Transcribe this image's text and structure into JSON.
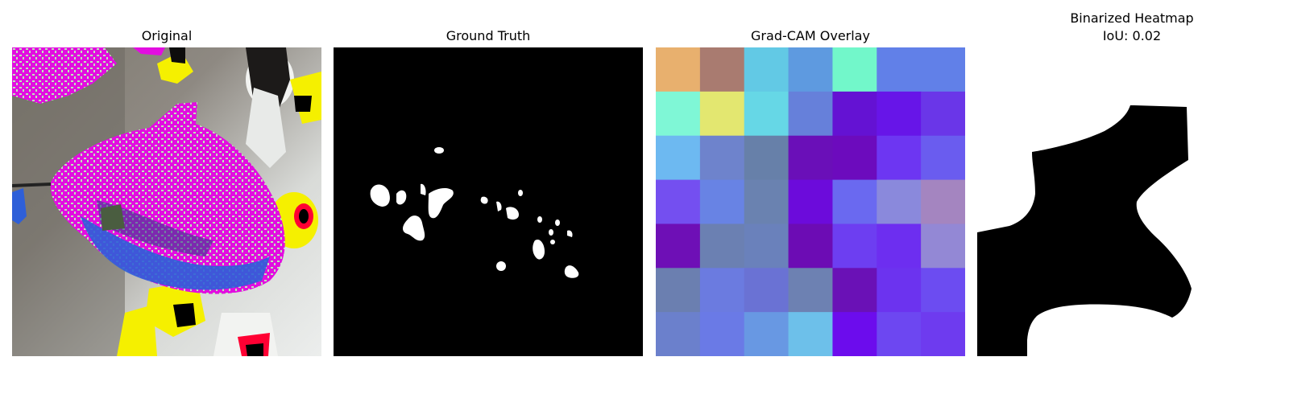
{
  "panels": [
    {
      "title": "Original"
    },
    {
      "title": "Ground Truth"
    },
    {
      "title": "Grad-CAM Overlay"
    },
    {
      "title": "Binarized Heatmap",
      "subtitle": "IoU: 0.02"
    }
  ],
  "gradcam_grid": {
    "rows": 7,
    "cols": 7,
    "colors": [
      [
        "#e8b06e",
        "#a97b70",
        "#62c9e5",
        "#5e9ae0",
        "#72f7ca",
        "#6180e8",
        "#6180e8"
      ],
      [
        "#7ff7d6",
        "#e3e770",
        "#66d7e6",
        "#6680da",
        "#6412d3",
        "#6715e8",
        "#6a36e8"
      ],
      [
        "#6db9f1",
        "#6e83cc",
        "#6780a9",
        "#6a0fb8",
        "#6c0bbd",
        "#6d36f2",
        "#6a5cef"
      ],
      [
        "#744ff0",
        "#6883e4",
        "#6a82b0",
        "#6c0bdb",
        "#6a69f0",
        "#8a89dc",
        "#a485c0"
      ],
      [
        "#6e0fb6",
        "#6b80b2",
        "#6a81bb",
        "#6c0cb4",
        "#6d3ef1",
        "#6d2ef0",
        "#9388d5"
      ],
      [
        "#6b7fb0",
        "#6b7be0",
        "#6a72d4",
        "#6d81b2",
        "#6a11b6",
        "#6c33ef",
        "#6c4cf1"
      ],
      [
        "#6b80cc",
        "#6a7ae6",
        "#6898e3",
        "#6dc0ea",
        "#6c0ced",
        "#6d47f1",
        "#6e3bef"
      ]
    ]
  },
  "colors": {
    "original_background": "#d8dad6",
    "original_shadow": "#6e6a62",
    "magenta": "#e20ee0",
    "leaf_green": "#bde8bb",
    "blue": "#2e5fd8",
    "yellow": "#f5f000",
    "black": "#000000",
    "white": "#ffffff"
  }
}
